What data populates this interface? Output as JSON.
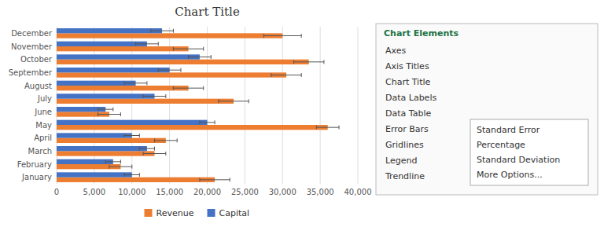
{
  "chart_data": {
    "type": "bar",
    "orientation": "horizontal",
    "title": "Chart Title",
    "categories": [
      "December",
      "November",
      "October",
      "September",
      "August",
      "July",
      "June",
      "May",
      "April",
      "March",
      "February",
      "January"
    ],
    "series": [
      {
        "name": "Revenue",
        "color": "#ED7D31",
        "values": [
          30000,
          17500,
          33500,
          30500,
          17500,
          23500,
          7000,
          36000,
          14500,
          13000,
          8500,
          21000
        ],
        "errors": [
          2500,
          2000,
          2000,
          2000,
          2000,
          2000,
          1500,
          1500,
          1500,
          1500,
          1500,
          2000
        ]
      },
      {
        "name": "Capital",
        "color": "#4472C4",
        "values": [
          14000,
          12000,
          19000,
          15000,
          10500,
          13000,
          6500,
          20000,
          10000,
          12000,
          7500,
          10000
        ],
        "errors": [
          1500,
          1500,
          1500,
          1500,
          1500,
          1500,
          1000,
          1000,
          1000,
          1000,
          1000,
          1000
        ]
      }
    ],
    "xlim": [
      0,
      40000
    ],
    "xticks": [
      0,
      {
        "value": 5000,
        "label": "5,000"
      },
      {
        "value": 10000,
        "label": "10,000"
      },
      {
        "value": 15000,
        "label": "15,000"
      },
      {
        "value": 20000,
        "label": "20,000"
      },
      {
        "value": 25000,
        "label": "25,000"
      },
      {
        "value": 30000,
        "label": "30,000"
      },
      {
        "value": 35000,
        "label": "35,000"
      },
      {
        "value": 40000,
        "label": "40,000"
      }
    ],
    "grid": true,
    "legend": "bottom",
    "annotations": [
      "Chart Elements",
      "Axes",
      "Axis Titles",
      "Chart Title",
      "Data Labels",
      "Data Table",
      "Error Bars",
      "Gridlines",
      "Legend",
      "Trendline",
      "Standard Error",
      "Percentage",
      "Standard Deviation",
      "More Options..."
    ]
  }
}
